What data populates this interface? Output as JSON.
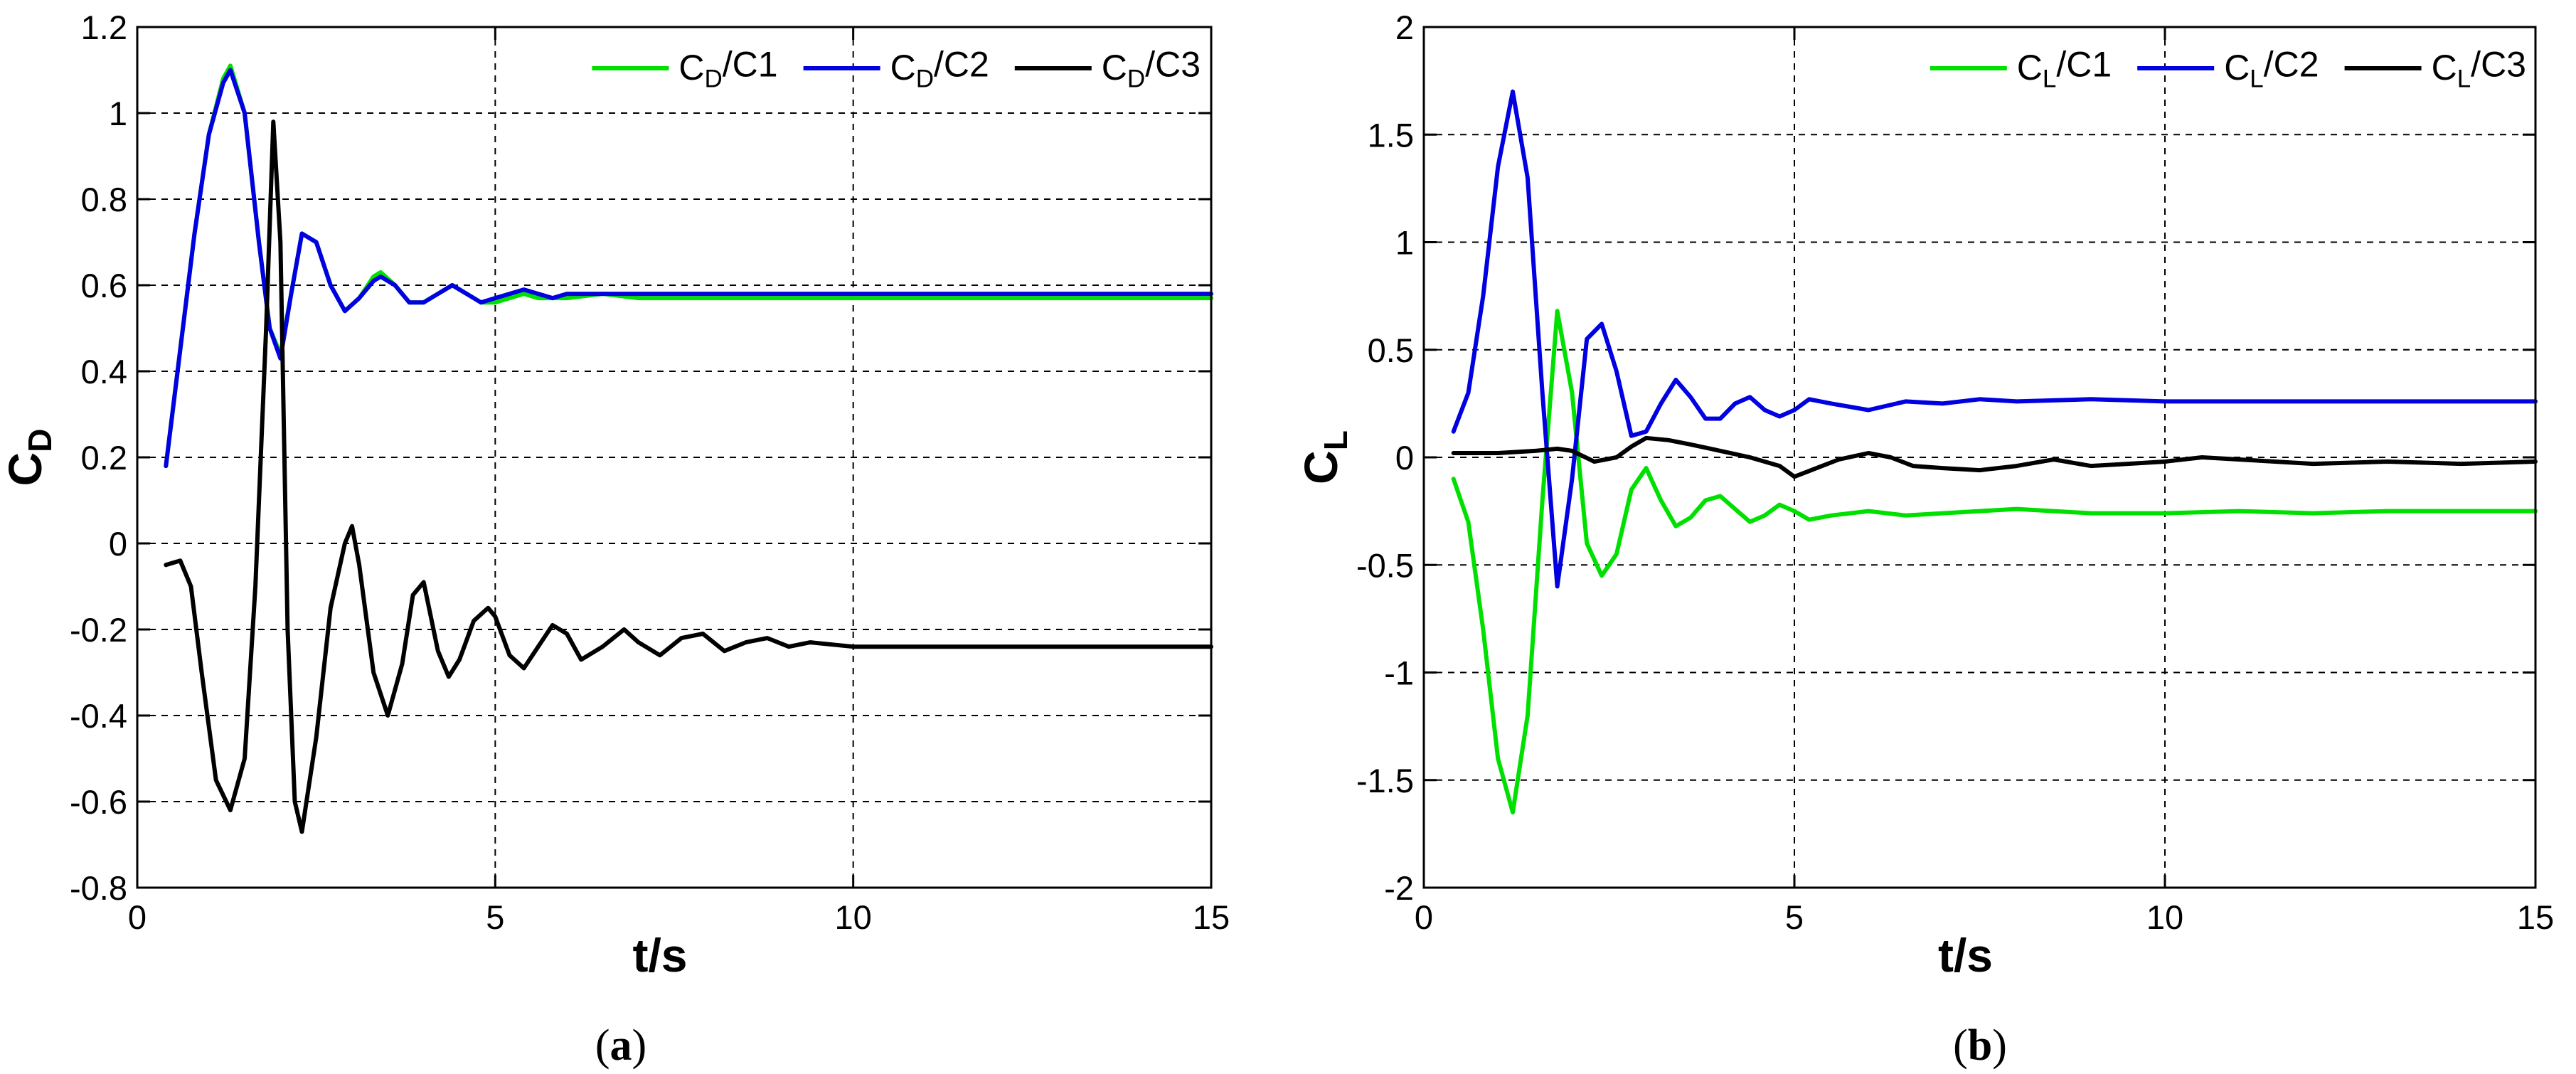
{
  "chart_data": [
    {
      "type": "line",
      "caption": "(a)",
      "xlabel": "t/s",
      "ylabel": "C_D",
      "xlim": [
        0,
        15
      ],
      "ylim": [
        -0.8,
        1.2
      ],
      "xticks": [
        0,
        5,
        10,
        15
      ],
      "yticks": [
        -0.8,
        -0.6,
        -0.4,
        -0.2,
        0,
        0.2,
        0.4,
        0.6,
        0.8,
        1,
        1.2
      ],
      "x_tick_labels": [
        "0",
        "5",
        "10",
        "15"
      ],
      "y_tick_labels": [
        "-0.8",
        "-0.6",
        "-0.4",
        "-0.2",
        "0",
        "0.2",
        "0.4",
        "0.6",
        "0.8",
        "1",
        "1.2"
      ],
      "grid": "dashed",
      "legend_position": "top-right",
      "series": [
        {
          "name": "C_D/C1",
          "color": "#00e000",
          "x": [
            0.4,
            0.6,
            0.8,
            1.0,
            1.2,
            1.3,
            1.5,
            1.7,
            1.85,
            2.0,
            2.15,
            2.3,
            2.5,
            2.7,
            2.9,
            3.1,
            3.3,
            3.4,
            3.6,
            3.8,
            4.0,
            4.2,
            4.4,
            4.6,
            4.8,
            5.0,
            5.2,
            5.4,
            5.6,
            5.8,
            6.0,
            6.5,
            7.0,
            7.5,
            8.0,
            9.0,
            10.0,
            11.0,
            12.0,
            13.0,
            14.0,
            15.0
          ],
          "y": [
            0.18,
            0.45,
            0.72,
            0.95,
            1.08,
            1.11,
            1.0,
            0.7,
            0.5,
            0.44,
            0.58,
            0.72,
            0.7,
            0.6,
            0.54,
            0.57,
            0.62,
            0.63,
            0.6,
            0.56,
            0.56,
            0.58,
            0.6,
            0.58,
            0.56,
            0.56,
            0.57,
            0.58,
            0.57,
            0.57,
            0.57,
            0.58,
            0.57,
            0.57,
            0.57,
            0.57,
            0.57,
            0.57,
            0.57,
            0.57,
            0.57,
            0.57
          ]
        },
        {
          "name": "C_D/C2",
          "color": "#0000e0",
          "x": [
            0.4,
            0.6,
            0.8,
            1.0,
            1.2,
            1.3,
            1.5,
            1.7,
            1.85,
            2.0,
            2.15,
            2.3,
            2.5,
            2.7,
            2.9,
            3.1,
            3.3,
            3.4,
            3.6,
            3.8,
            4.0,
            4.2,
            4.4,
            4.6,
            4.8,
            5.0,
            5.2,
            5.4,
            5.6,
            5.8,
            6.0,
            6.5,
            7.0,
            7.5,
            8.0,
            9.0,
            10.0,
            11.0,
            12.0,
            13.0,
            14.0,
            15.0
          ],
          "y": [
            0.18,
            0.45,
            0.72,
            0.95,
            1.07,
            1.1,
            1.0,
            0.7,
            0.5,
            0.43,
            0.58,
            0.72,
            0.7,
            0.6,
            0.54,
            0.57,
            0.61,
            0.62,
            0.6,
            0.56,
            0.56,
            0.58,
            0.6,
            0.58,
            0.56,
            0.57,
            0.58,
            0.59,
            0.58,
            0.57,
            0.58,
            0.58,
            0.58,
            0.58,
            0.58,
            0.58,
            0.58,
            0.58,
            0.58,
            0.58,
            0.58,
            0.58
          ]
        },
        {
          "name": "C_D/C3",
          "color": "#000000",
          "x": [
            0.4,
            0.6,
            0.75,
            0.9,
            1.1,
            1.3,
            1.5,
            1.65,
            1.8,
            1.9,
            2.0,
            2.1,
            2.2,
            2.3,
            2.5,
            2.7,
            2.9,
            3.0,
            3.1,
            3.3,
            3.5,
            3.7,
            3.85,
            4.0,
            4.2,
            4.35,
            4.5,
            4.7,
            4.9,
            5.0,
            5.2,
            5.4,
            5.6,
            5.8,
            6.0,
            6.2,
            6.5,
            6.8,
            7.0,
            7.3,
            7.6,
            7.9,
            8.2,
            8.5,
            8.8,
            9.1,
            9.4,
            10.0,
            11.0,
            12.0,
            13.0,
            14.0,
            15.0
          ],
          "y": [
            -0.05,
            -0.04,
            -0.1,
            -0.3,
            -0.55,
            -0.62,
            -0.5,
            -0.1,
            0.5,
            0.98,
            0.7,
            -0.2,
            -0.6,
            -0.67,
            -0.45,
            -0.15,
            0.0,
            0.04,
            -0.05,
            -0.3,
            -0.4,
            -0.28,
            -0.12,
            -0.09,
            -0.25,
            -0.31,
            -0.27,
            -0.18,
            -0.15,
            -0.17,
            -0.26,
            -0.29,
            -0.24,
            -0.19,
            -0.21,
            -0.27,
            -0.24,
            -0.2,
            -0.23,
            -0.26,
            -0.22,
            -0.21,
            -0.25,
            -0.23,
            -0.22,
            -0.24,
            -0.23,
            -0.24,
            -0.24,
            -0.24,
            -0.24,
            -0.24,
            -0.24
          ]
        }
      ]
    },
    {
      "type": "line",
      "caption": "(b)",
      "xlabel": "t/s",
      "ylabel": "C_L",
      "xlim": [
        0,
        15
      ],
      "ylim": [
        -2,
        2
      ],
      "xticks": [
        0,
        5,
        10,
        15
      ],
      "yticks": [
        -2,
        -1.5,
        -1,
        -0.5,
        0,
        0.5,
        1,
        1.5,
        2
      ],
      "x_tick_labels": [
        "0",
        "5",
        "10",
        "15"
      ],
      "y_tick_labels": [
        "-2",
        "-1.5",
        "-1",
        "-0.5",
        "0",
        "0.5",
        "1",
        "1.5",
        "2"
      ],
      "grid": "dashed",
      "legend_position": "top-right",
      "series": [
        {
          "name": "C_L/C1",
          "color": "#00e000",
          "x": [
            0.4,
            0.6,
            0.8,
            1.0,
            1.2,
            1.4,
            1.6,
            1.8,
            2.0,
            2.2,
            2.4,
            2.6,
            2.8,
            3.0,
            3.2,
            3.4,
            3.6,
            3.8,
            4.0,
            4.2,
            4.4,
            4.6,
            4.8,
            5.0,
            5.2,
            5.5,
            6.0,
            6.5,
            7.0,
            7.5,
            8.0,
            9.0,
            10.0,
            11.0,
            12.0,
            13.0,
            14.0,
            15.0
          ],
          "y": [
            -0.1,
            -0.3,
            -0.8,
            -1.4,
            -1.65,
            -1.2,
            -0.2,
            0.68,
            0.3,
            -0.4,
            -0.55,
            -0.45,
            -0.15,
            -0.05,
            -0.2,
            -0.32,
            -0.28,
            -0.2,
            -0.18,
            -0.24,
            -0.3,
            -0.27,
            -0.22,
            -0.25,
            -0.29,
            -0.27,
            -0.25,
            -0.27,
            -0.26,
            -0.25,
            -0.24,
            -0.26,
            -0.26,
            -0.25,
            -0.26,
            -0.25,
            -0.25,
            -0.25
          ]
        },
        {
          "name": "C_L/C2",
          "color": "#0000e0",
          "x": [
            0.4,
            0.6,
            0.8,
            1.0,
            1.2,
            1.4,
            1.6,
            1.8,
            2.0,
            2.2,
            2.4,
            2.6,
            2.8,
            3.0,
            3.2,
            3.4,
            3.6,
            3.8,
            4.0,
            4.2,
            4.4,
            4.6,
            4.8,
            5.0,
            5.2,
            5.5,
            6.0,
            6.5,
            7.0,
            7.5,
            8.0,
            9.0,
            10.0,
            11.0,
            12.0,
            13.0,
            14.0,
            15.0
          ],
          "y": [
            0.12,
            0.3,
            0.75,
            1.35,
            1.7,
            1.3,
            0.3,
            -0.6,
            -0.1,
            0.55,
            0.62,
            0.4,
            0.1,
            0.12,
            0.25,
            0.36,
            0.28,
            0.18,
            0.18,
            0.25,
            0.28,
            0.22,
            0.19,
            0.22,
            0.27,
            0.25,
            0.22,
            0.26,
            0.25,
            0.27,
            0.26,
            0.27,
            0.26,
            0.26,
            0.26,
            0.26,
            0.26,
            0.26
          ]
        },
        {
          "name": "C_L/C3",
          "color": "#000000",
          "x": [
            0.4,
            1.0,
            1.5,
            1.8,
            2.0,
            2.3,
            2.6,
            2.8,
            3.0,
            3.3,
            3.6,
            4.0,
            4.4,
            4.8,
            5.0,
            5.3,
            5.6,
            6.0,
            6.3,
            6.6,
            7.0,
            7.5,
            8.0,
            8.5,
            9.0,
            9.5,
            10.0,
            10.5,
            11.0,
            12.0,
            13.0,
            14.0,
            15.0
          ],
          "y": [
            0.02,
            0.02,
            0.03,
            0.04,
            0.03,
            -0.02,
            0.0,
            0.05,
            0.09,
            0.08,
            0.06,
            0.03,
            0.0,
            -0.04,
            -0.09,
            -0.05,
            -0.01,
            0.02,
            0.0,
            -0.04,
            -0.05,
            -0.06,
            -0.04,
            -0.01,
            -0.04,
            -0.03,
            -0.02,
            0.0,
            -0.01,
            -0.03,
            -0.02,
            -0.03,
            -0.02
          ]
        }
      ]
    }
  ]
}
